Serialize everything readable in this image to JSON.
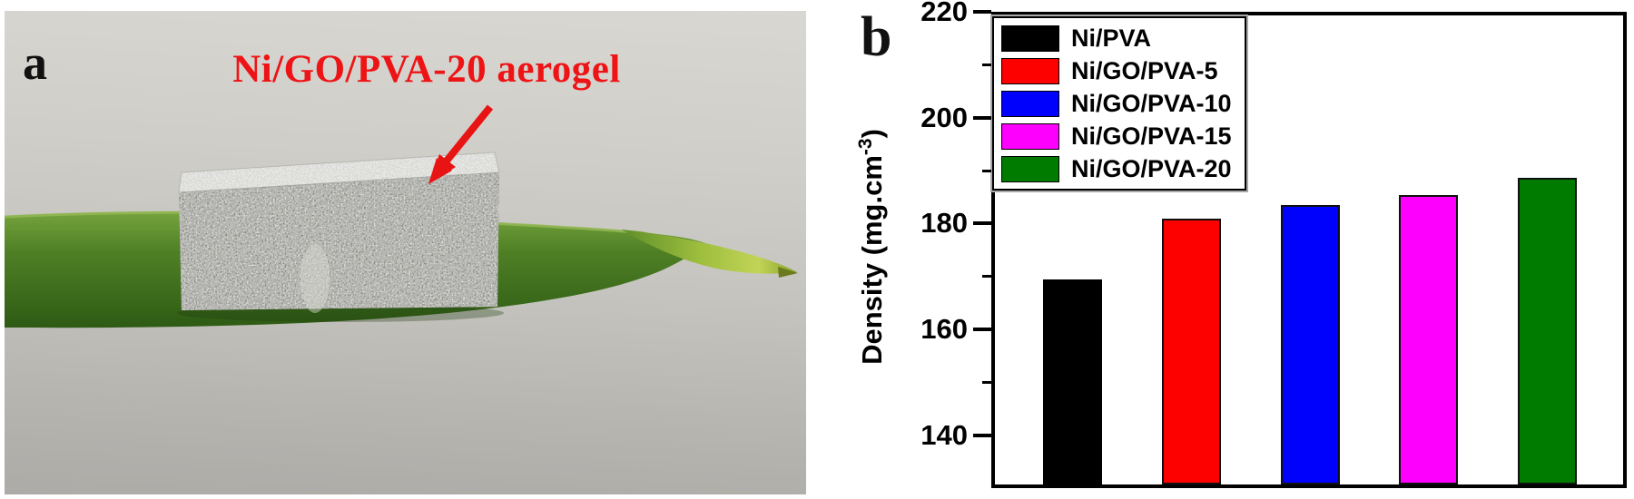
{
  "figure": {
    "panel_a": {
      "label": "a",
      "annotation": "Ni/GO/PVA-20 aerogel",
      "annotation_color": "#ee1315",
      "photo_content": "gray porous aerogel block resting on a green leaf over a light gray background"
    },
    "panel_b": {
      "label": "b"
    }
  },
  "chart_data": {
    "type": "bar",
    "categories": [
      "Ni/PVA",
      "Ni/GO/PVA-5",
      "Ni/GO/PVA-10",
      "Ni/GO/PVA-15",
      "Ni/GO/PVA-20"
    ],
    "values": [
      169.4,
      180.9,
      183.5,
      185.3,
      188.7
    ],
    "colors": [
      "#000000",
      "#fd0000",
      "#0000fd",
      "#fd00fd",
      "#007b00"
    ],
    "title": "",
    "xlabel": "",
    "ylabel": "Density (mg.cm-3)",
    "ylabel_parts": {
      "prefix": "Density (mg.cm",
      "sup": "-3",
      "suffix": ")"
    },
    "ylim": [
      130,
      220
    ],
    "yticks": [
      140,
      160,
      180,
      200,
      220
    ],
    "yticks_minor": [
      150,
      170,
      190,
      210
    ],
    "grid": false,
    "legend_position": "top-left",
    "legend": [
      "Ni/PVA",
      "Ni/GO/PVA-5",
      "Ni/GO/PVA-10",
      "Ni/GO/PVA-15",
      "Ni/GO/PVA-20"
    ]
  }
}
